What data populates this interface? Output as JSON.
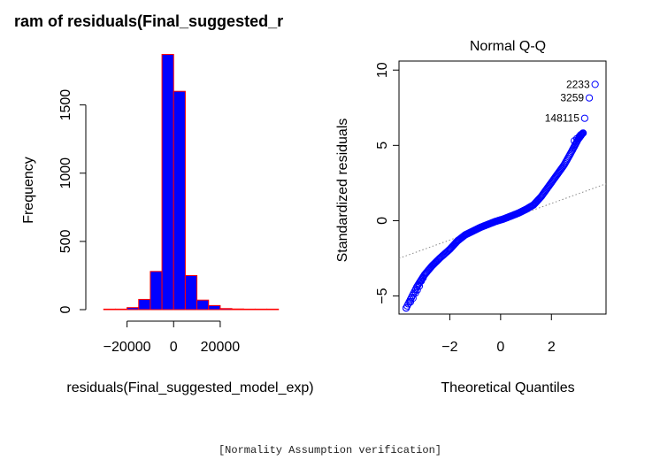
{
  "caption": "[Normality Assumption verification]",
  "chart_data": [
    {
      "type": "bar",
      "title": "ram of residuals(Final_suggested_r",
      "xlabel": "residuals(Final_suggested_model_exp)",
      "ylabel": "Frequency",
      "x_ticks": [
        -20000,
        0,
        20000
      ],
      "x_tick_labels": [
        "−20000",
        "0",
        "20000"
      ],
      "y_ticks": [
        0,
        500,
        1000,
        1500
      ],
      "y_tick_labels": [
        "0",
        "500",
        "1000",
        "1500"
      ],
      "xlim": [
        -32000,
        47000
      ],
      "ylim": [
        0,
        1880
      ],
      "bin_edges": [
        -30000,
        -25000,
        -20000,
        -15000,
        -10000,
        -5000,
        0,
        5000,
        10000,
        15000,
        20000,
        25000,
        30000,
        35000,
        40000,
        45000
      ],
      "values": [
        2,
        4,
        15,
        75,
        280,
        1870,
        1600,
        250,
        70,
        30,
        8,
        5,
        2,
        1,
        1
      ],
      "bar_fill": "#0000ff",
      "bar_border": "#ff0000"
    },
    {
      "type": "scatter",
      "title": "Normal Q-Q",
      "xlabel": "Theoretical Quantiles",
      "ylabel": "Standardized residuals",
      "x_ticks": [
        -2,
        0,
        2
      ],
      "x_tick_labels": [
        "−2",
        "0",
        "2"
      ],
      "y_ticks": [
        -5,
        0,
        5,
        10
      ],
      "y_tick_labels": [
        "−5",
        "0",
        "5",
        "10"
      ],
      "xlim": [
        -4,
        4.15
      ],
      "ylim": [
        -6.2,
        10.6
      ],
      "point_color": "#0000ff",
      "reference_line": {
        "from": [
          -4,
          -2.5
        ],
        "to": [
          4.15,
          2.45
        ]
      },
      "curve": [
        [
          -3.72,
          -5.8
        ],
        [
          -3.3,
          -4.4
        ],
        [
          -3.0,
          -3.6
        ],
        [
          -2.7,
          -3.0
        ],
        [
          -2.4,
          -2.5
        ],
        [
          -2.0,
          -1.9
        ],
        [
          -1.7,
          -1.35
        ],
        [
          -1.4,
          -0.95
        ],
        [
          -1.1,
          -0.7
        ],
        [
          -0.8,
          -0.45
        ],
        [
          -0.5,
          -0.25
        ],
        [
          -0.2,
          -0.05
        ],
        [
          0.1,
          0.1
        ],
        [
          0.4,
          0.3
        ],
        [
          0.7,
          0.5
        ],
        [
          1.0,
          0.75
        ],
        [
          1.3,
          1.05
        ],
        [
          1.6,
          1.6
        ],
        [
          1.9,
          2.3
        ],
        [
          2.2,
          3.0
        ],
        [
          2.5,
          3.7
        ],
        [
          2.8,
          4.6
        ],
        [
          3.05,
          5.4
        ],
        [
          3.25,
          5.85
        ]
      ],
      "tail_points": [
        [
          -3.72,
          -5.8
        ],
        [
          -3.55,
          -5.4
        ],
        [
          -3.45,
          -5.15
        ],
        [
          -3.35,
          -4.8
        ],
        [
          -3.28,
          -4.6
        ],
        [
          -3.2,
          -4.35
        ],
        [
          -3.12,
          -4.0
        ],
        [
          -3.05,
          -3.8
        ],
        [
          2.9,
          5.3
        ],
        [
          3.0,
          5.45
        ],
        [
          3.1,
          5.6
        ],
        [
          3.15,
          5.7
        ],
        [
          3.2,
          5.75
        ],
        [
          3.25,
          5.82
        ]
      ],
      "outliers": [
        {
          "label": "2233",
          "x": 3.72,
          "y": 9.05
        },
        {
          "label": "3259",
          "x": 3.49,
          "y": 8.15
        },
        {
          "label": "148115",
          "x": 3.31,
          "y": 6.8
        }
      ]
    }
  ]
}
